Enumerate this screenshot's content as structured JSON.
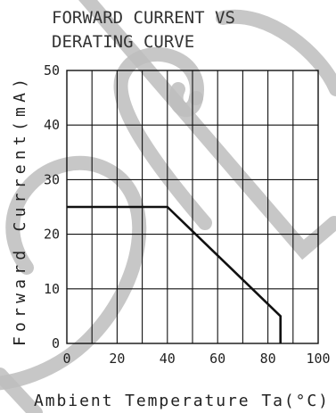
{
  "chart_data": {
    "type": "line",
    "title_line1": "FORWARD CURRENT VS",
    "title_line2": "DERATING CURVE",
    "xlabel": "Ambient Temperature Ta(°C)",
    "ylabel": "Forward Current(mA)",
    "xlim": [
      0,
      100
    ],
    "ylim": [
      0,
      50
    ],
    "x_ticks": [
      0,
      20,
      40,
      60,
      80,
      100
    ],
    "y_ticks": [
      0,
      10,
      20,
      30,
      40,
      50
    ],
    "grid": true,
    "series": [
      {
        "x": [
          0,
          40,
          85,
          85
        ],
        "y": [
          25,
          25,
          5,
          0
        ]
      }
    ],
    "grid_stroke": "#111111",
    "watermark_color": "#bdbdbd"
  }
}
